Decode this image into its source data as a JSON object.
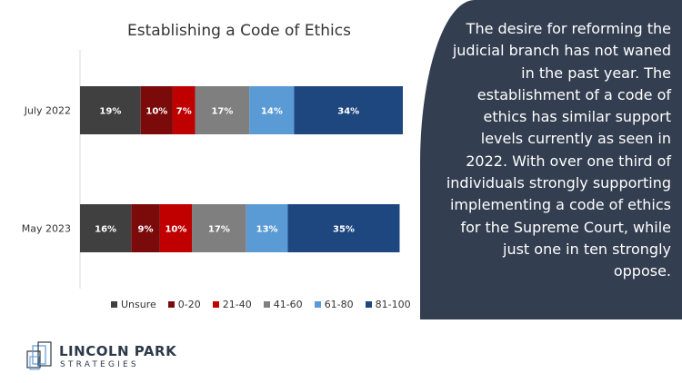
{
  "chart_data": {
    "type": "bar",
    "orientation": "horizontal",
    "stacked": true,
    "title": "Establishing a Code of Ethics",
    "categories": [
      "July 2022",
      "May 2023"
    ],
    "series": [
      {
        "name": "Unsure",
        "color": "#404040",
        "values": [
          19,
          16
        ]
      },
      {
        "name": "0-20",
        "color": "#7b0b0b",
        "values": [
          10,
          9
        ]
      },
      {
        "name": "21-40",
        "color": "#c00000",
        "values": [
          7,
          10
        ]
      },
      {
        "name": "41-60",
        "color": "#7f7f7f",
        "values": [
          17,
          17
        ]
      },
      {
        "name": "61-80",
        "color": "#5b9bd5",
        "values": [
          14,
          13
        ]
      },
      {
        "name": "81-100",
        "color": "#1f477f",
        "values": [
          34,
          35
        ]
      }
    ],
    "data_label_suffix": "%",
    "legend_position": "bottom",
    "grid": false
  },
  "side_panel": {
    "text": "The desire for reforming the judicial branch has not waned in the past year. The establishment of a code of ethics has similar support levels currently as seen in 2022. With over one third of individuals strongly supporting implementing a code of ethics for the Supreme Court, while just one in ten strongly oppose."
  },
  "logo": {
    "name": "LINCOLN PARK",
    "tagline": "STRATEGIES"
  }
}
